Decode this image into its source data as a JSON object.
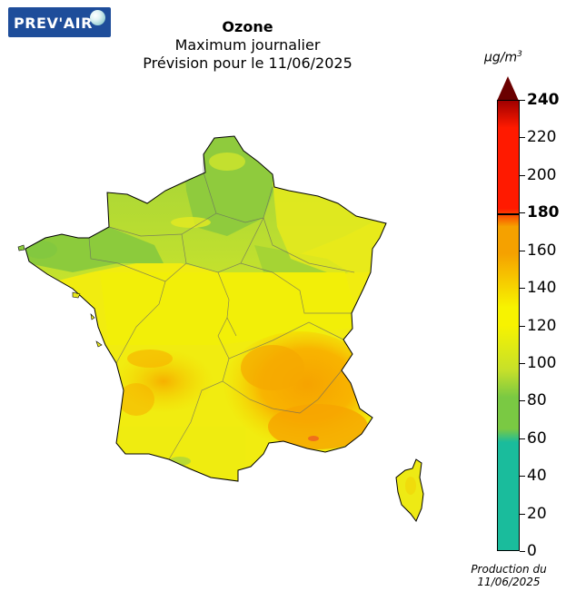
{
  "logo": {
    "text": "PREV'AIR"
  },
  "title": {
    "main": "Ozone",
    "line2": "Maximum journalier",
    "line3": "Prévision pour le 11/06/2025"
  },
  "legend": {
    "unit": "µg/m",
    "unit_exponent": "3",
    "ticks": [
      "240",
      "220",
      "200",
      "180",
      "160",
      "140",
      "120",
      "100",
      "80",
      "60",
      "40",
      "20",
      "0"
    ],
    "bold_ticks": [
      "240",
      "180"
    ],
    "colors": {
      "teal": "#1abc9c",
      "green": "#7ac943",
      "lime": "#c6e02a",
      "yellow": "#f7f300",
      "orange": "#f5a100",
      "red": "#ff1a00",
      "darkred": "#6b0000"
    }
  },
  "production": {
    "line1": "Production du",
    "line2": "11/06/2025"
  }
}
